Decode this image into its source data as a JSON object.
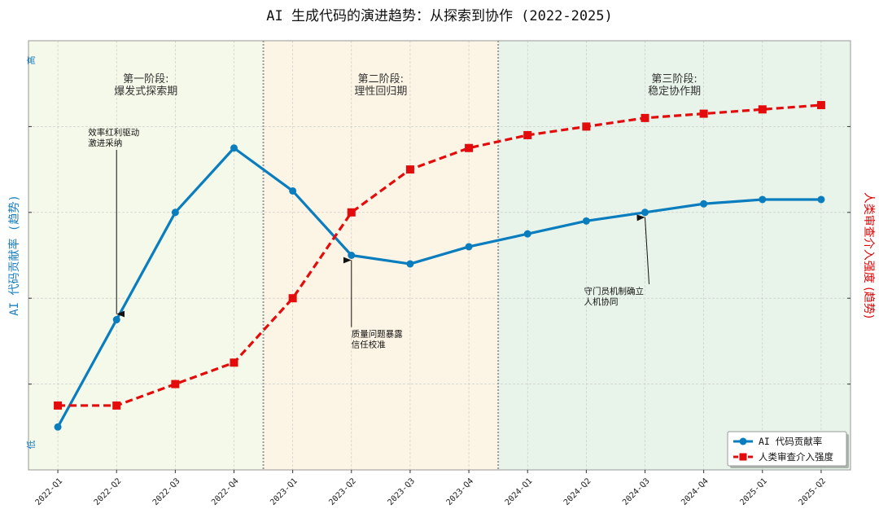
{
  "chart_data": {
    "type": "line",
    "title": "AI 生成代码的演进趋势：从探索到协作 (2022-2025)",
    "x": [
      "2022-Q1",
      "2022-Q2",
      "2022-Q3",
      "2022-Q4",
      "2023-Q1",
      "2023-Q2",
      "2023-Q3",
      "2023-Q4",
      "2024-Q1",
      "2024-Q2",
      "2024-Q3",
      "2024-Q4",
      "2025-Q1",
      "2025-Q2"
    ],
    "ylabel_left": "AI 代码贡献率 (趋势)",
    "ylabel_right": "人类审查介入强度 (趋势)",
    "y_high_label": "高",
    "y_low_label": "低",
    "ylim": [
      0,
      100
    ],
    "grid": true,
    "legend_position": "bottom-right",
    "series": [
      {
        "name": "AI 代码贡献率",
        "color": "#0a7dbf",
        "style": "solid",
        "marker": "circle",
        "values": [
          10,
          35,
          60,
          75,
          65,
          50,
          48,
          52,
          55,
          58,
          60,
          62,
          63,
          63
        ]
      },
      {
        "name": "人类审查介入强度",
        "color": "#e30b0b",
        "style": "dashed",
        "marker": "square",
        "values": [
          15,
          15,
          20,
          25,
          40,
          60,
          70,
          75,
          78,
          80,
          82,
          83,
          84,
          85
        ]
      }
    ],
    "phases": [
      {
        "label_line1": "第一阶段:",
        "label_line2": "爆发式探索期",
        "start": -0.5,
        "end": 3.5,
        "color": "#f5f9e9"
      },
      {
        "label_line1": "第二阶段:",
        "label_line2": "理性回归期",
        "start": 3.5,
        "end": 7.5,
        "color": "#fcf4e4"
      },
      {
        "label_line1": "第三阶段:",
        "label_line2": "稳定协作期",
        "start": 7.5,
        "end": 13.5,
        "color": "#e8f4ea"
      }
    ],
    "annotations": [
      {
        "line1": "效率红利驱动",
        "line2": "激进采纳",
        "target_index": 1,
        "target_series": 0,
        "text_y": 78
      },
      {
        "line1": "质量问题暴露",
        "line2": "信任校准",
        "target_index": 5,
        "target_series": 0,
        "text_y": 31
      },
      {
        "line1": "守门员机制确立",
        "line2": "人机协同",
        "target_index": 10,
        "target_series": 0,
        "text_y": 41
      }
    ]
  }
}
